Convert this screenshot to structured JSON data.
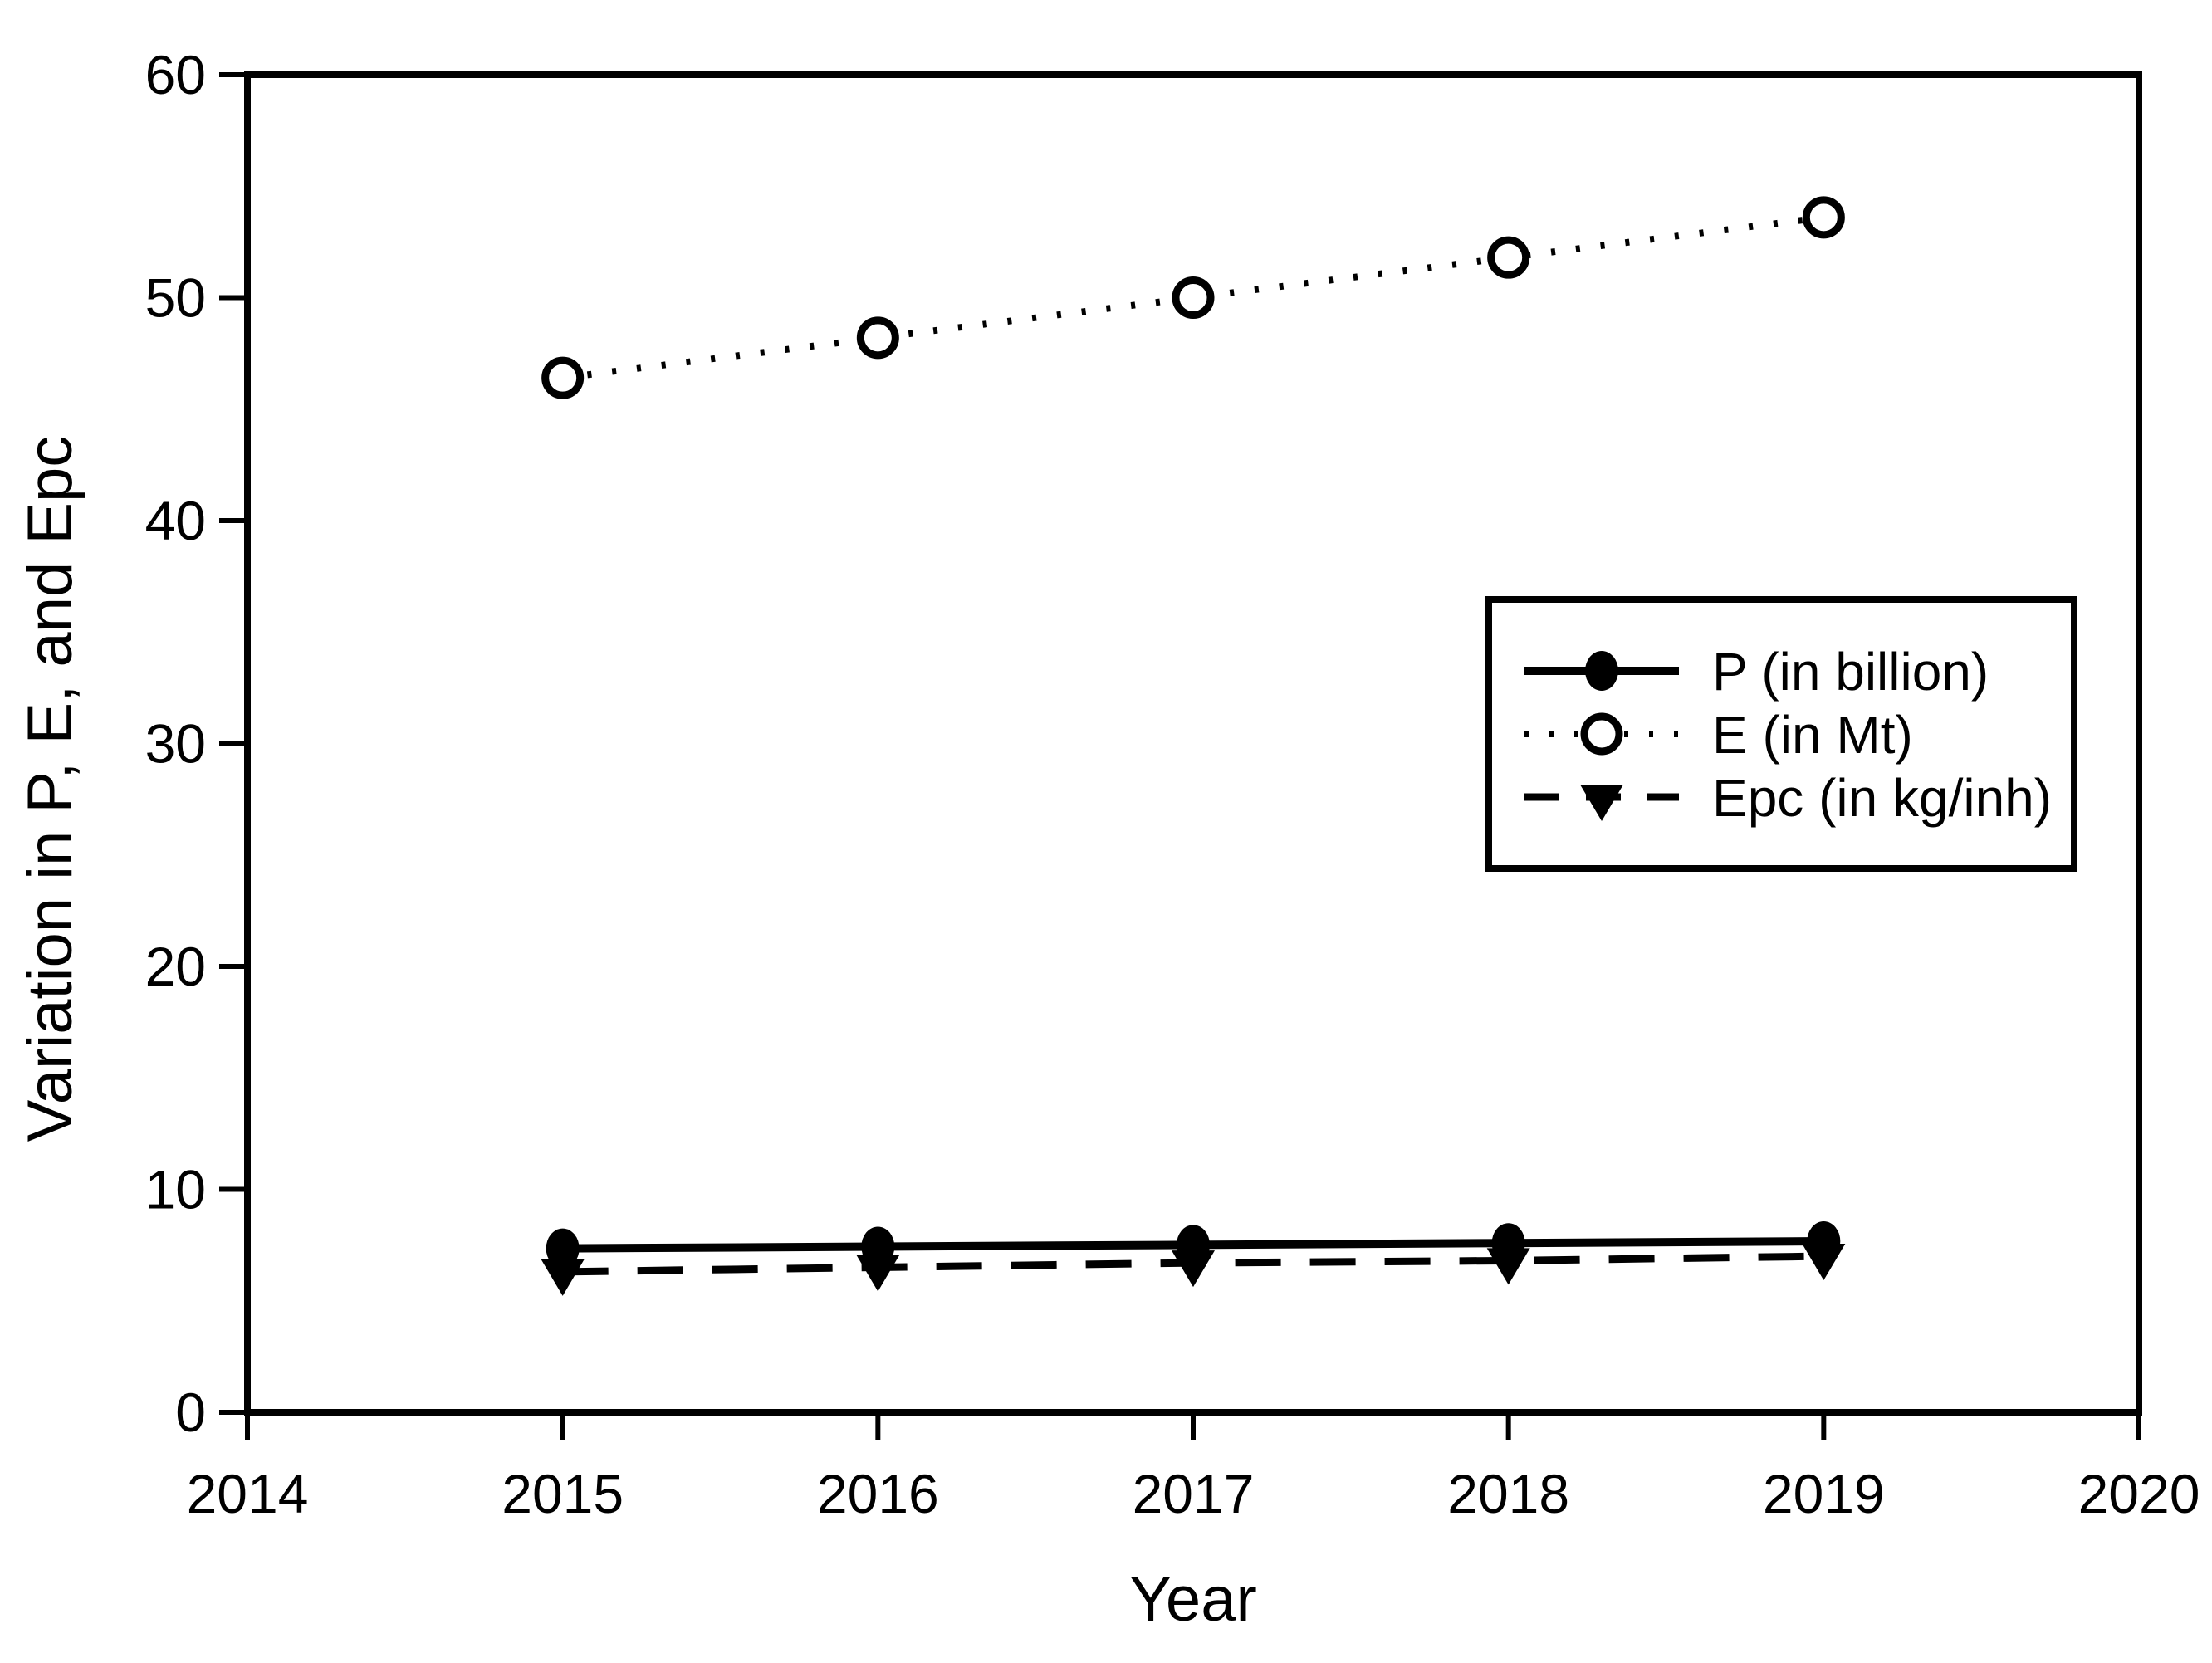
{
  "figure": {
    "background": "#ffffff",
    "ink_color": "#000000"
  },
  "chart_data": {
    "type": "line",
    "title": "",
    "xlabel": "Year",
    "ylabel": "Variation in P, E, and Epc",
    "x": [
      2015,
      2016,
      2017,
      2018,
      2019
    ],
    "series": [
      {
        "name": "P (in billion)",
        "values": [
          7.35,
          7.43,
          7.51,
          7.59,
          7.67
        ],
        "line_style": "solid",
        "marker": "filled-circle",
        "color": "#000000"
      },
      {
        "name": "E (in Mt)",
        "values": [
          46.4,
          48.2,
          50.0,
          51.8,
          53.6
        ],
        "line_style": "dotted",
        "marker": "open-circle",
        "color": "#000000"
      },
      {
        "name": "Epc (in kg/inh)",
        "values": [
          6.3,
          6.5,
          6.7,
          6.8,
          7.0
        ],
        "line_style": "dashed",
        "marker": "filled-triangle-down",
        "color": "#000000"
      }
    ],
    "xlim": [
      2014,
      2020
    ],
    "ylim": [
      0,
      60
    ],
    "xticks": [
      2014,
      2015,
      2016,
      2017,
      2018,
      2019,
      2020
    ],
    "yticks": [
      0,
      10,
      20,
      30,
      40,
      50,
      60
    ],
    "grid": false,
    "legend_position": "inside-middle-right"
  }
}
